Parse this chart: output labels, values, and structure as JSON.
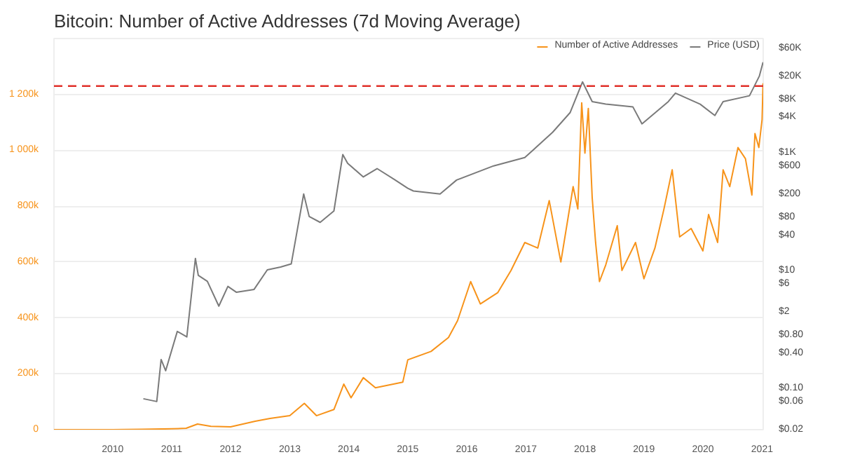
{
  "chart_data": {
    "type": "line",
    "title": "Bitcoin: Number of Active Addresses (7d Moving Average)",
    "xlim": [
      "2009-01-03",
      "2021-01-08"
    ],
    "xticks": [
      "2010",
      "2011",
      "2012",
      "2013",
      "2014",
      "2015",
      "2016",
      "2017",
      "2018",
      "2019",
      "2020",
      "2021"
    ],
    "ylim": [
      0,
      1400000
    ],
    "yticks": [
      {
        "value": 0,
        "label": "0"
      },
      {
        "value": 200000,
        "label": "200k"
      },
      {
        "value": 400000,
        "label": "400k"
      },
      {
        "value": 600000,
        "label": "600k"
      },
      {
        "value": 800000,
        "label": "800k"
      },
      {
        "value": 1000000,
        "label": "1 000k"
      },
      {
        "value": 1200000,
        "label": "1 200k"
      }
    ],
    "log": "y2",
    "y2lim": [
      0.02,
      87000
    ],
    "y2ticks": [
      {
        "value": 0.02,
        "label": "$0.02"
      },
      {
        "value": 0.06,
        "label": "$0.06"
      },
      {
        "value": 0.1,
        "label": "$0.10"
      },
      {
        "value": 0.4,
        "label": "$0.40"
      },
      {
        "value": 0.8,
        "label": "$0.80"
      },
      {
        "value": 2,
        "label": "$2"
      },
      {
        "value": 6,
        "label": "$6"
      },
      {
        "value": 10,
        "label": "$10"
      },
      {
        "value": 40,
        "label": "$40"
      },
      {
        "value": 80,
        "label": "$80"
      },
      {
        "value": 200,
        "label": "$200"
      },
      {
        "value": 600,
        "label": "$600"
      },
      {
        "value": 1000,
        "label": "$1K"
      },
      {
        "value": 4000,
        "label": "$4K"
      },
      {
        "value": 8000,
        "label": "$8K"
      },
      {
        "value": 20000,
        "label": "$20K"
      },
      {
        "value": 60000,
        "label": "$60K"
      }
    ],
    "grid": "y",
    "legend": "top right",
    "ref_lines": [
      {
        "axis": "y",
        "value": 1230000,
        "color": "#e0302a",
        "line_style": "dashed"
      }
    ],
    "series": [
      {
        "name": "Number of Active Addresses",
        "color": "#f7931a",
        "x": [
          "2009-01-03",
          "2010-01-01",
          "2010-07-01",
          "2011-01-01",
          "2011-04-01",
          "2011-06-10",
          "2011-09-01",
          "2012-01-01",
          "2012-06-01",
          "2012-09-01",
          "2013-01-01",
          "2013-04-01",
          "2013-06-15",
          "2013-10-01",
          "2013-12-01",
          "2014-01-15",
          "2014-04-01",
          "2014-06-15",
          "2014-12-01",
          "2015-01-01",
          "2015-05-25",
          "2015-09-10",
          "2015-11-05",
          "2016-01-25",
          "2016-03-25",
          "2016-07-10",
          "2016-10-01",
          "2016-12-25",
          "2017-03-15",
          "2017-05-25",
          "2017-08-05",
          "2017-10-20",
          "2017-11-18",
          "2017-12-12",
          "2018-01-01",
          "2018-01-22",
          "2018-02-15",
          "2018-03-08",
          "2018-04-01",
          "2018-05-10",
          "2018-07-20",
          "2018-08-18",
          "2018-11-10",
          "2019-01-01",
          "2019-03-10",
          "2019-05-05",
          "2019-06-25",
          "2019-08-10",
          "2019-10-20",
          "2020-01-01",
          "2020-02-05",
          "2020-04-01",
          "2020-05-05",
          "2020-06-15",
          "2020-08-05",
          "2020-09-20",
          "2020-10-30",
          "2020-11-18",
          "2020-12-12",
          "2021-01-01",
          "2021-01-07"
        ],
        "values": [
          0,
          0,
          1000,
          3000,
          5000,
          20000,
          12000,
          10000,
          30000,
          40000,
          50000,
          94000,
          50000,
          72000,
          163000,
          114000,
          186000,
          150000,
          170000,
          250000,
          280000,
          330000,
          390000,
          530000,
          450000,
          490000,
          570000,
          670000,
          650000,
          820000,
          600000,
          870000,
          790000,
          1170000,
          990000,
          1150000,
          830000,
          670000,
          530000,
          590000,
          730000,
          570000,
          670000,
          540000,
          650000,
          790000,
          930000,
          690000,
          720000,
          640000,
          770000,
          670000,
          930000,
          870000,
          1010000,
          970000,
          840000,
          1060000,
          1010000,
          1110000,
          1240000
        ]
      },
      {
        "name": "Price (USD)",
        "color": "#7a7a7a",
        "axis": "y2",
        "x": [
          "2010-07-10",
          "2010-10-01",
          "2010-10-28",
          "2010-11-25",
          "2011-02-05",
          "2011-04-05",
          "2011-05-28",
          "2011-06-15",
          "2011-08-10",
          "2011-10-20",
          "2011-12-15",
          "2012-02-05",
          "2012-05-25",
          "2012-08-15",
          "2012-11-05",
          "2013-01-10",
          "2013-03-28",
          "2013-05-01",
          "2013-07-08",
          "2013-10-01",
          "2013-11-25",
          "2013-12-25",
          "2014-04-01",
          "2014-06-25",
          "2014-10-12",
          "2015-01-01",
          "2015-02-05",
          "2015-07-20",
          "2015-10-30",
          "2016-06-15",
          "2016-12-25",
          "2017-06-15",
          "2017-10-01",
          "2017-12-17",
          "2018-02-15",
          "2018-05-10",
          "2018-10-25",
          "2018-12-20",
          "2019-06-01",
          "2019-07-15",
          "2019-12-15",
          "2020-03-15",
          "2020-05-05",
          "2020-10-15",
          "2020-12-15",
          "2021-01-07"
        ],
        "values": [
          0.067,
          0.06,
          0.31,
          0.2,
          0.93,
          0.75,
          16.1,
          8.3,
          6.6,
          2.5,
          5.4,
          4.3,
          4.8,
          10.3,
          11.5,
          13,
          200,
          83,
          66,
          103,
          935,
          665,
          390,
          540,
          350,
          250,
          225,
          200,
          345,
          600,
          830,
          2230,
          4800,
          16000,
          7400,
          6700,
          6000,
          3100,
          7400,
          10300,
          6700,
          4300,
          7400,
          9300,
          20000,
          34500
        ]
      }
    ]
  }
}
